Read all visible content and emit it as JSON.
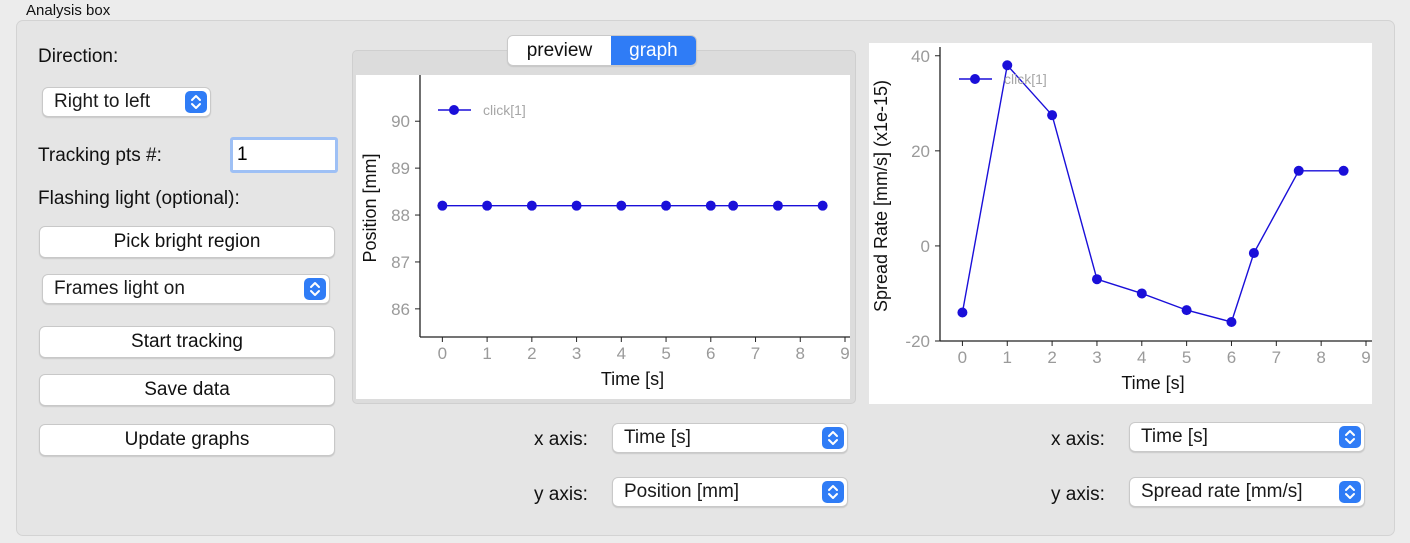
{
  "group": {
    "title": "Analysis box"
  },
  "controls": {
    "direction_label": "Direction:",
    "direction_value": "Right to left",
    "tracking_label": "Tracking pts #:",
    "tracking_value": "1",
    "flashing_label": "Flashing light (optional):",
    "pick_bright_region": "Pick bright region",
    "frames_value": "Frames light on",
    "start_tracking": "Start tracking",
    "save_data": "Save data",
    "update_graphs": "Update graphs"
  },
  "tabs": [
    {
      "label": "preview",
      "selected": false
    },
    {
      "label": "graph",
      "selected": true
    }
  ],
  "axis_selectors": {
    "left": {
      "x_label": "x axis:",
      "x_value": "Time [s]",
      "y_label": "y axis:",
      "y_value": "Position [mm]"
    },
    "right": {
      "x_label": "x axis:",
      "x_value": "Time [s]",
      "y_label": "y axis:",
      "y_value": "Spread rate [mm/s]"
    }
  },
  "colors": {
    "accent": "#2f7cf6",
    "series": "#1a0fd9",
    "axis_tick_text": "#9a9a9a"
  },
  "chart_data": [
    {
      "type": "line",
      "title": "",
      "xlabel": "Time [s]",
      "ylabel": "Position [mm]",
      "xlim": [
        -0.5,
        9
      ],
      "ylim": [
        85.4,
        90.9
      ],
      "xticks": [
        0,
        1,
        2,
        3,
        4,
        5,
        6,
        7,
        8,
        9
      ],
      "yticks": [
        86,
        87,
        88,
        89,
        90
      ],
      "legend": "top-left",
      "grid": false,
      "series": [
        {
          "name": "click[1]",
          "x": [
            0,
            1,
            2,
            3,
            4,
            5,
            6,
            6.5,
            7.5,
            8.5
          ],
          "y": [
            88.2,
            88.2,
            88.2,
            88.2,
            88.2,
            88.2,
            88.2,
            88.2,
            88.2,
            88.2
          ]
        }
      ]
    },
    {
      "type": "line",
      "title": "",
      "xlabel": "Time [s]",
      "ylabel": "Spread Rate [mm/s] (x1e-15)",
      "xlim": [
        -0.5,
        9
      ],
      "ylim": [
        -20,
        41
      ],
      "xticks": [
        0,
        1,
        2,
        3,
        4,
        5,
        6,
        7,
        8,
        9
      ],
      "yticks": [
        -20,
        0,
        20,
        40
      ],
      "legend": "top-left",
      "grid": false,
      "series": [
        {
          "name": "click[1]",
          "x": [
            0,
            1,
            2,
            3,
            4,
            5,
            6,
            6.5,
            7.5,
            8.5
          ],
          "y": [
            -14,
            38,
            27.5,
            -7,
            -10,
            -13.5,
            -16,
            -1.5,
            15.8,
            15.8
          ]
        }
      ]
    }
  ]
}
